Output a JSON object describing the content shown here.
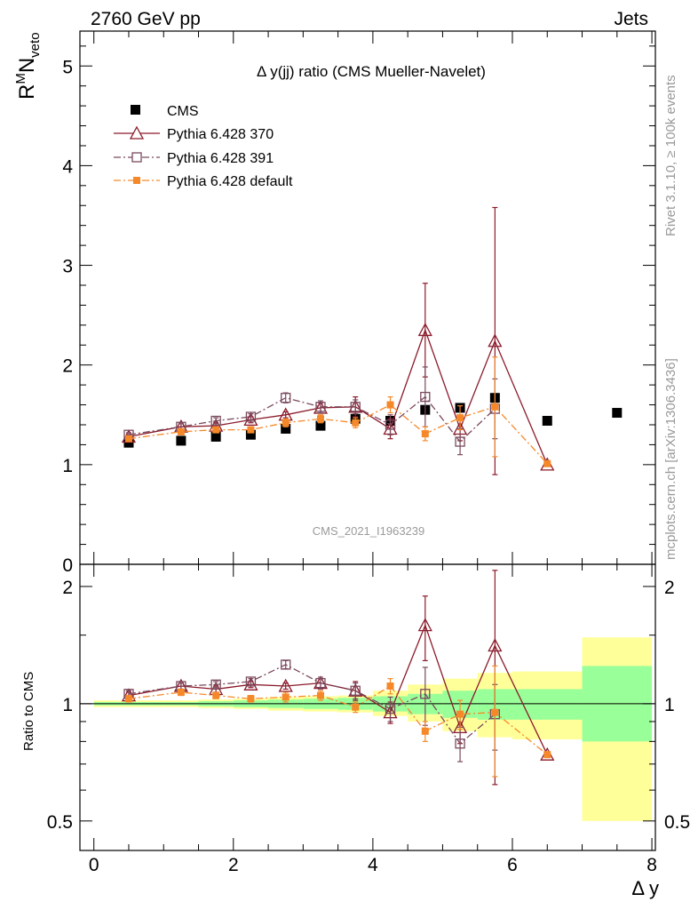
{
  "header": {
    "left": "2760 GeV pp",
    "right": "Jets"
  },
  "side": {
    "rivet": "Rivet 3.1.10, ≥ 100k events",
    "mcplots": "mcplots.cern.ch [arXiv:1306.3436]"
  },
  "chart_data": [
    {
      "type": "scatter",
      "title": "Δ y(jj) ratio (CMS Mueller-Navelet)",
      "ylabel": "R^M N_veto",
      "ylabel_parts": {
        "r": "R",
        "sup": "M",
        "n": "N",
        "sub": "veto"
      },
      "watermark": "CMS_2021_I1963239",
      "xlim": [
        -0.2,
        8.05
      ],
      "ylim": [
        0,
        5.35
      ],
      "yticks": [
        0,
        1,
        2,
        3,
        4,
        5
      ],
      "ytick_labels": [
        "0",
        "1",
        "2",
        "3",
        "4",
        "5"
      ],
      "legend": {
        "placement": "top-left",
        "entries": [
          "CMS",
          "Pythia 6.428 370",
          "Pythia 6.428 391",
          "Pythia 6.428 default"
        ]
      },
      "series": [
        {
          "name": "CMS",
          "color": "#000000",
          "marker": "filled-square",
          "x": [
            0.5,
            1.25,
            1.75,
            2.25,
            2.75,
            3.25,
            3.75,
            4.25,
            4.75,
            5.25,
            5.75,
            6.5,
            7.5
          ],
          "y": [
            1.22,
            1.24,
            1.28,
            1.3,
            1.36,
            1.39,
            1.46,
            1.44,
            1.55,
            1.57,
            1.67,
            1.44,
            1.52
          ],
          "err": [
            0,
            0,
            0,
            0,
            0,
            0,
            0,
            0,
            0,
            0,
            0,
            0,
            0
          ]
        },
        {
          "name": "Pythia 6.428 370",
          "color": "#8b1a2a",
          "marker": "open-triangle",
          "line": "solid",
          "x": [
            0.5,
            1.25,
            1.75,
            2.25,
            2.75,
            3.25,
            3.75,
            4.25,
            4.75,
            5.25,
            5.75,
            6.5
          ],
          "y": [
            1.28,
            1.38,
            1.39,
            1.45,
            1.5,
            1.57,
            1.58,
            1.36,
            2.35,
            1.36,
            2.24,
            1.0
          ],
          "err": [
            0.02,
            0.03,
            0.03,
            0.03,
            0.03,
            0.05,
            0.1,
            0.1,
            0.47,
            0.12,
            1.34,
            0.0
          ]
        },
        {
          "name": "Pythia 6.428 391",
          "color": "#7a4a5e",
          "marker": "open-square",
          "line": "dash-dot",
          "x": [
            0.5,
            1.25,
            1.75,
            2.25,
            2.75,
            3.25,
            3.75,
            4.25,
            4.75,
            5.25,
            5.75
          ],
          "y": [
            1.3,
            1.38,
            1.44,
            1.48,
            1.67,
            1.58,
            1.58,
            1.4,
            1.68,
            1.23,
            1.56
          ],
          "err": [
            0.02,
            0.03,
            0.03,
            0.03,
            0.05,
            0.06,
            0.07,
            0.1,
            0.3,
            0.13,
            0.3
          ]
        },
        {
          "name": "Pythia 6.428 default",
          "color": "#f5892a",
          "marker": "filled-small-square",
          "line": "dash-dot",
          "x": [
            0.5,
            1.25,
            1.75,
            2.25,
            2.75,
            3.25,
            3.75,
            4.25,
            4.75,
            5.25,
            5.75,
            6.5
          ],
          "y": [
            1.26,
            1.33,
            1.35,
            1.35,
            1.42,
            1.46,
            1.42,
            1.6,
            1.31,
            1.47,
            1.58,
            1.01
          ],
          "err": [
            0.02,
            0.03,
            0.03,
            0.03,
            0.04,
            0.04,
            0.05,
            0.08,
            0.07,
            0.12,
            0.5,
            0.0
          ]
        }
      ]
    },
    {
      "type": "scatter",
      "ylabel": "Ratio to CMS",
      "xlabel": "Δ y",
      "xlim": [
        -0.2,
        8.05
      ],
      "ylim": [
        0.42,
        2.28
      ],
      "xticks": [
        0,
        2,
        4,
        6,
        8
      ],
      "xtick_labels": [
        "0",
        "2",
        "4",
        "6",
        "8"
      ],
      "yticks": [
        0.5,
        1,
        2
      ],
      "ytick_labels": [
        "0.5",
        "1",
        "2"
      ],
      "bands": {
        "edges": [
          0,
          1,
          1.5,
          2,
          2.5,
          3,
          3.5,
          4,
          4.5,
          5,
          5.5,
          6,
          7,
          8
        ],
        "yellow_lo": [
          0.98,
          0.98,
          0.975,
          0.97,
          0.96,
          0.955,
          0.95,
          0.93,
          0.9,
          0.85,
          0.82,
          0.81,
          0.5
        ],
        "yellow_hi": [
          1.02,
          1.02,
          1.025,
          1.03,
          1.04,
          1.045,
          1.05,
          1.08,
          1.12,
          1.16,
          1.2,
          1.21,
          1.48
        ],
        "green_lo": [
          0.99,
          0.99,
          0.985,
          0.98,
          0.975,
          0.97,
          0.965,
          0.955,
          0.94,
          0.92,
          0.91,
          0.91,
          0.8
        ],
        "green_hi": [
          1.01,
          1.01,
          1.015,
          1.02,
          1.025,
          1.03,
          1.035,
          1.045,
          1.06,
          1.08,
          1.09,
          1.09,
          1.25
        ]
      },
      "series": [
        {
          "name": "Pythia 6.428 370",
          "color": "#8b1a2a",
          "marker": "open-triangle",
          "line": "solid",
          "x": [
            0.5,
            1.25,
            1.75,
            2.25,
            2.75,
            3.25,
            3.75,
            4.25,
            4.75,
            5.25,
            5.75,
            6.5
          ],
          "y": [
            1.05,
            1.11,
            1.09,
            1.12,
            1.11,
            1.13,
            1.08,
            0.95,
            1.59,
            0.87,
            1.41,
            0.74
          ],
          "err": [
            0.02,
            0.02,
            0.02,
            0.02,
            0.02,
            0.03,
            0.06,
            0.06,
            0.3,
            0.08,
            0.79,
            0.0
          ]
        },
        {
          "name": "Pythia 6.428 391",
          "color": "#7a4a5e",
          "marker": "open-square",
          "line": "dash-dot",
          "x": [
            0.5,
            1.25,
            1.75,
            2.25,
            2.75,
            3.25,
            3.75,
            4.25,
            4.75,
            5.25,
            5.75
          ],
          "y": [
            1.06,
            1.11,
            1.12,
            1.14,
            1.26,
            1.13,
            1.08,
            0.97,
            1.06,
            0.79,
            0.94
          ],
          "err": [
            0.02,
            0.02,
            0.02,
            0.02,
            0.03,
            0.04,
            0.05,
            0.07,
            0.18,
            0.08,
            0.18
          ]
        },
        {
          "name": "Pythia 6.428 default",
          "color": "#f5892a",
          "marker": "filled-small-square",
          "line": "dash-dot",
          "x": [
            0.5,
            1.25,
            1.75,
            2.25,
            2.75,
            3.25,
            3.75,
            4.25,
            4.75,
            5.25,
            5.75,
            6.5
          ],
          "y": [
            1.03,
            1.07,
            1.05,
            1.03,
            1.04,
            1.05,
            0.98,
            1.11,
            0.85,
            0.94,
            0.95,
            0.74
          ],
          "err": [
            0.02,
            0.02,
            0.02,
            0.02,
            0.03,
            0.03,
            0.03,
            0.05,
            0.05,
            0.08,
            0.3,
            0.0
          ]
        }
      ]
    }
  ]
}
